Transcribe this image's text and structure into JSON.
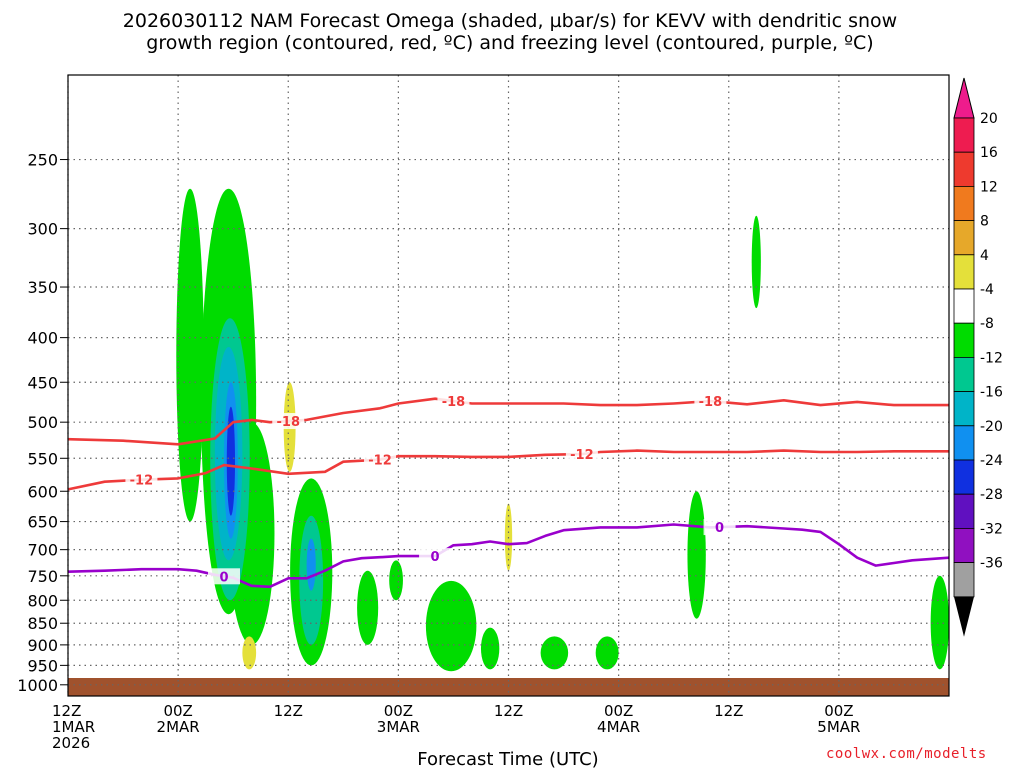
{
  "chart_data": {
    "type": "time-height contour",
    "title_lines": [
      "2026030112 NAM Forecast Omega (shaded, µbar/s) for KEVV with dendritic snow",
      "growth region (contoured, red, ºC) and freezing level (contoured, purple, ºC)"
    ],
    "xlabel": "Forecast Time (UTC)",
    "y_ticks": [
      250,
      300,
      350,
      400,
      450,
      500,
      550,
      600,
      650,
      700,
      750,
      800,
      850,
      900,
      950,
      1000
    ],
    "y_range_hpa": [
      1030,
      200
    ],
    "x_range_hours": [
      0,
      96
    ],
    "x_ticks": [
      {
        "hour": 0,
        "lines": [
          "12Z",
          "1MAR",
          "2026"
        ]
      },
      {
        "hour": 12,
        "lines": [
          "00Z",
          "2MAR"
        ]
      },
      {
        "hour": 24,
        "lines": [
          "12Z"
        ]
      },
      {
        "hour": 36,
        "lines": [
          "00Z",
          "3MAR"
        ]
      },
      {
        "hour": 48,
        "lines": [
          "12Z"
        ]
      },
      {
        "hour": 60,
        "lines": [
          "00Z",
          "4MAR"
        ]
      },
      {
        "hour": 72,
        "lines": [
          "12Z"
        ]
      },
      {
        "hour": 84,
        "lines": [
          "00Z",
          "5MAR"
        ]
      }
    ],
    "colorbar": {
      "labels": [
        "20",
        "16",
        "12",
        "8",
        "4",
        "-4",
        "-8",
        "-12",
        "-16",
        "-20",
        "-24",
        "-28",
        "-32",
        "-36"
      ],
      "colors": [
        "#ee1c50",
        "#ee3a2e",
        "#f07a1e",
        "#e6a82a",
        "#e4e03a",
        "#ffffff",
        "#00dc00",
        "#00c890",
        "#00b4c8",
        "#1090f0",
        "#1030e0",
        "#6010c0",
        "#9010c0",
        "#a0a0a0"
      ],
      "top_arrow_color": "#ee1c8c",
      "bottom_arrow_color": "#000000"
    },
    "contours": {
      "dgz_top_-18C": {
        "color": "#ee3a3a",
        "label": "-18",
        "label_hours": [
          24,
          42,
          70
        ],
        "points": [
          [
            0,
            523
          ],
          [
            6,
            525
          ],
          [
            12,
            530
          ],
          [
            16,
            522
          ],
          [
            18,
            500
          ],
          [
            20,
            497
          ],
          [
            22,
            500
          ],
          [
            26,
            497
          ],
          [
            30,
            488
          ],
          [
            34,
            482
          ],
          [
            36,
            476
          ],
          [
            40,
            470
          ],
          [
            44,
            476
          ],
          [
            48,
            476
          ],
          [
            54,
            476
          ],
          [
            58,
            478
          ],
          [
            62,
            478
          ],
          [
            66,
            476
          ],
          [
            70,
            473
          ],
          [
            74,
            477
          ],
          [
            78,
            472
          ],
          [
            82,
            478
          ],
          [
            86,
            474
          ],
          [
            90,
            478
          ],
          [
            96,
            478
          ]
        ]
      },
      "dgz_bottom_-12C": {
        "color": "#ee3a3a",
        "label": "-12",
        "label_hours": [
          8,
          34,
          56
        ],
        "points": [
          [
            0,
            597
          ],
          [
            4,
            585
          ],
          [
            8,
            582
          ],
          [
            12,
            580
          ],
          [
            15,
            572
          ],
          [
            17,
            560
          ],
          [
            20,
            565
          ],
          [
            24,
            573
          ],
          [
            28,
            570
          ],
          [
            30,
            555
          ],
          [
            34,
            552
          ],
          [
            36,
            547
          ],
          [
            40,
            547
          ],
          [
            44,
            548
          ],
          [
            48,
            548
          ],
          [
            52,
            545
          ],
          [
            56,
            544
          ],
          [
            58,
            541
          ],
          [
            62,
            539
          ],
          [
            66,
            541
          ],
          [
            70,
            541
          ],
          [
            74,
            541
          ],
          [
            78,
            539
          ],
          [
            82,
            541
          ],
          [
            86,
            541
          ],
          [
            90,
            540
          ],
          [
            96,
            540
          ]
        ]
      },
      "freezing_level_0C": {
        "color": "#9900cc",
        "label": "0",
        "label_hours": [
          17,
          40,
          71
        ],
        "points": [
          [
            0,
            742
          ],
          [
            4,
            740
          ],
          [
            8,
            737
          ],
          [
            12,
            737
          ],
          [
            14,
            740
          ],
          [
            16,
            748
          ],
          [
            18,
            754
          ],
          [
            20,
            770
          ],
          [
            22,
            772
          ],
          [
            24,
            755
          ],
          [
            26,
            755
          ],
          [
            28,
            740
          ],
          [
            30,
            722
          ],
          [
            32,
            716
          ],
          [
            34,
            714
          ],
          [
            36,
            712
          ],
          [
            38,
            712
          ],
          [
            40,
            712
          ],
          [
            42,
            692
          ],
          [
            44,
            690
          ],
          [
            46,
            685
          ],
          [
            48,
            690
          ],
          [
            50,
            688
          ],
          [
            52,
            675
          ],
          [
            54,
            665
          ],
          [
            58,
            660
          ],
          [
            62,
            660
          ],
          [
            66,
            655
          ],
          [
            70,
            660
          ],
          [
            74,
            658
          ],
          [
            78,
            662
          ],
          [
            80,
            664
          ],
          [
            82,
            668
          ],
          [
            84,
            690
          ],
          [
            86,
            715
          ],
          [
            88,
            730
          ],
          [
            90,
            725
          ],
          [
            92,
            720
          ],
          [
            96,
            715
          ]
        ]
      }
    },
    "shaded_regions": [
      {
        "color": "#00dc00",
        "hours": [
          11.8,
          14.8
        ],
        "top_hpa": 270,
        "bottom_hpa": 650
      },
      {
        "color": "#00dc00",
        "hours": [
          14.5,
          20.5
        ],
        "top_hpa": 270,
        "bottom_hpa": 830
      },
      {
        "color": "#00dc00",
        "hours": [
          17.5,
          22.5
        ],
        "top_hpa": 500,
        "bottom_hpa": 900
      },
      {
        "color": "#00c890",
        "hours": [
          15.5,
          19.8
        ],
        "top_hpa": 380,
        "bottom_hpa": 800
      },
      {
        "color": "#00b4c8",
        "hours": [
          16.0,
          19.0
        ],
        "top_hpa": 410,
        "bottom_hpa": 720
      },
      {
        "color": "#1090f0",
        "hours": [
          17.0,
          18.5
        ],
        "top_hpa": 450,
        "bottom_hpa": 680
      },
      {
        "color": "#1030e0",
        "hours": [
          17.3,
          18.2
        ],
        "top_hpa": 480,
        "bottom_hpa": 640
      },
      {
        "color": "#00dc00",
        "hours": [
          24.2,
          28.8
        ],
        "top_hpa": 580,
        "bottom_hpa": 950
      },
      {
        "color": "#00c890",
        "hours": [
          25.2,
          27.8
        ],
        "top_hpa": 640,
        "bottom_hpa": 900
      },
      {
        "color": "#1090f0",
        "hours": [
          26.0,
          27.0
        ],
        "top_hpa": 680,
        "bottom_hpa": 780
      },
      {
        "color": "#00dc00",
        "hours": [
          31.5,
          33.8
        ],
        "top_hpa": 740,
        "bottom_hpa": 900
      },
      {
        "color": "#00dc00",
        "hours": [
          35.0,
          36.5
        ],
        "top_hpa": 720,
        "bottom_hpa": 800
      },
      {
        "color": "#00dc00",
        "hours": [
          39.0,
          44.5
        ],
        "top_hpa": 760,
        "bottom_hpa": 965
      },
      {
        "color": "#00dc00",
        "hours": [
          45.0,
          47.0
        ],
        "top_hpa": 860,
        "bottom_hpa": 960
      },
      {
        "color": "#00dc00",
        "hours": [
          51.5,
          54.5
        ],
        "top_hpa": 880,
        "bottom_hpa": 960
      },
      {
        "color": "#00dc00",
        "hours": [
          57.5,
          60.0
        ],
        "top_hpa": 880,
        "bottom_hpa": 960
      },
      {
        "color": "#00dc00",
        "hours": [
          67.5,
          69.5
        ],
        "top_hpa": 600,
        "bottom_hpa": 840
      },
      {
        "color": "#00dc00",
        "hours": [
          74.5,
          75.5
        ],
        "top_hpa": 290,
        "bottom_hpa": 370
      },
      {
        "color": "#00dc00",
        "hours": [
          94.0,
          96.0
        ],
        "top_hpa": 750,
        "bottom_hpa": 960
      },
      {
        "color": "#e4e03a",
        "hours": [
          23.5,
          24.8
        ],
        "top_hpa": 450,
        "bottom_hpa": 570
      },
      {
        "color": "#e4e03a",
        "hours": [
          19.0,
          20.5
        ],
        "top_hpa": 880,
        "bottom_hpa": 960
      },
      {
        "color": "#e4e03a",
        "hours": [
          47.6,
          48.4
        ],
        "top_hpa": 620,
        "bottom_hpa": 740
      }
    ]
  },
  "credit": "coolwx.com/modelts"
}
